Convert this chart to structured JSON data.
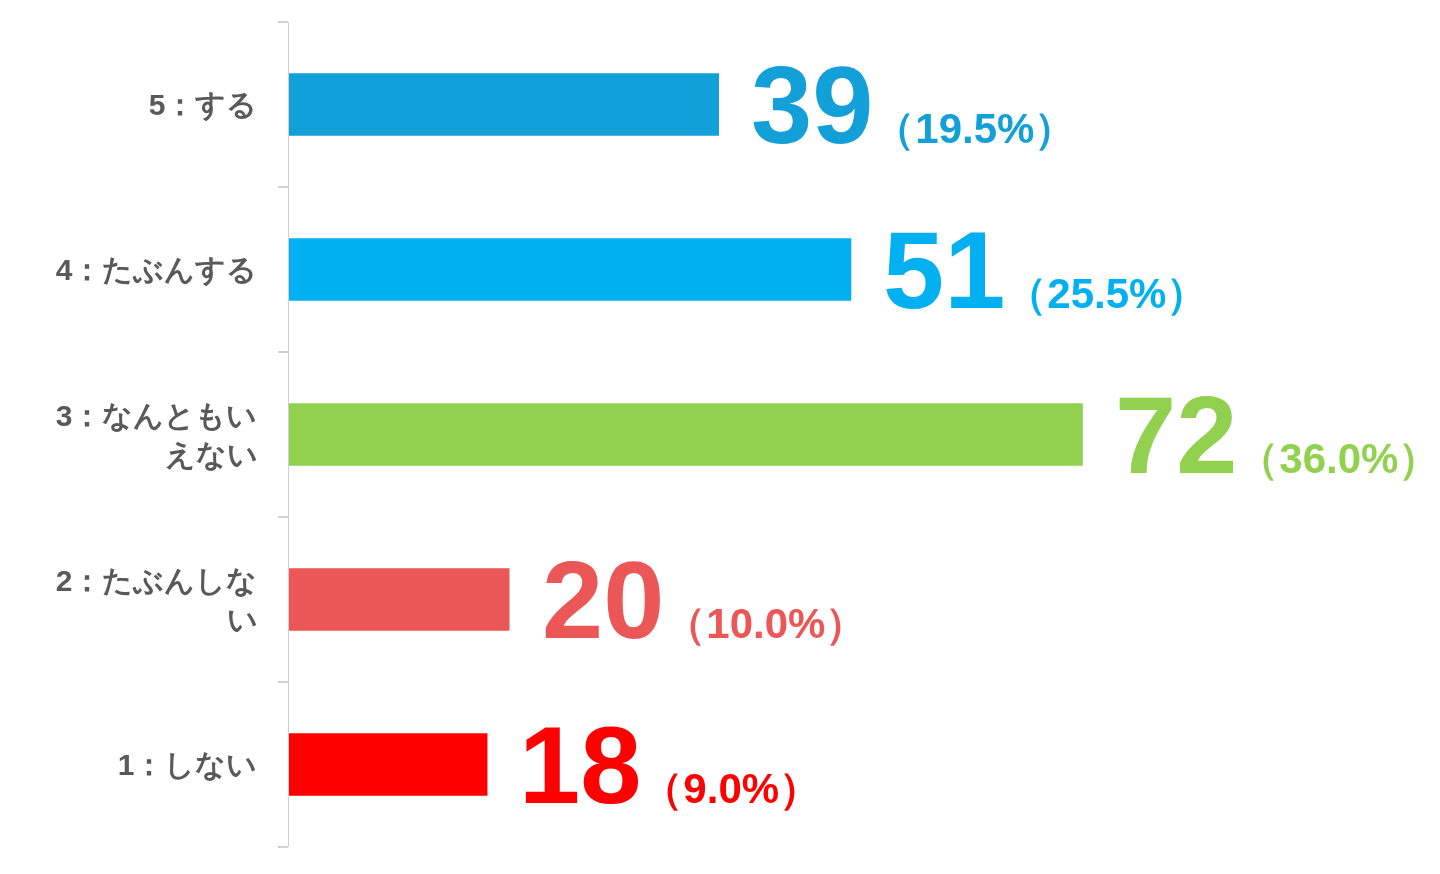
{
  "chart_data": {
    "type": "bar",
    "orientation": "horizontal",
    "categories": [
      "5：する",
      "4：たぶんする",
      "3：なんともいえない",
      "2：たぶんしない",
      "1：しない"
    ],
    "values": [
      39,
      51,
      72,
      20,
      18
    ],
    "colors": [
      "#139fd7",
      "#00b0f0",
      "#92d050",
      "#eb5656",
      "#ff0000"
    ],
    "value_labels": [
      "39（19.5%）",
      "51（25.5%）",
      "72（36.0%）",
      "20（10.0%）",
      "18（9.0%）"
    ]
  }
}
